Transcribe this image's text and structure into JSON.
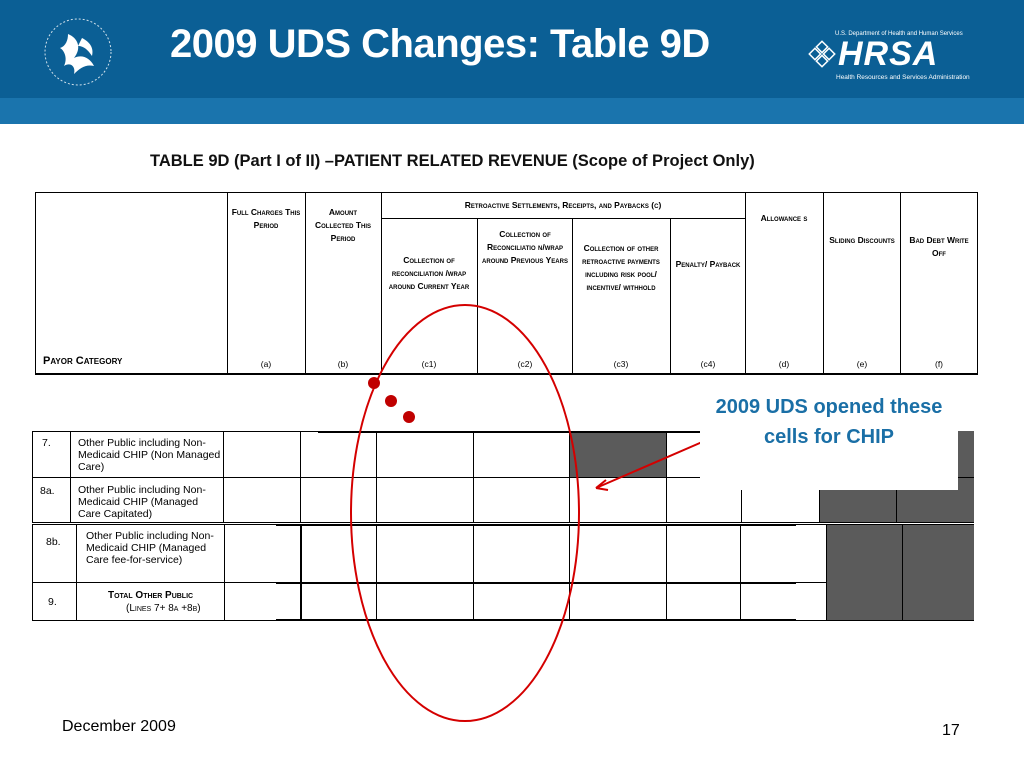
{
  "slide": {
    "title": "2009 UDS Changes: Table 9D",
    "date": "December 2009",
    "page_number": "17"
  },
  "logos": {
    "hhs_icon": "hhs-eagle-icon",
    "hrsa_department": "U.S. Department of Health and Human Services",
    "hrsa_word": "HRSA",
    "hrsa_subtitle": "Health Resources and Services Administration"
  },
  "table": {
    "title": "TABLE 9D (Part I of II) –PATIENT RELATED REVENUE (Scope of Project Only)",
    "group_header": "Retroactive Settlements, Receipts, and Paybacks (c)",
    "columns": [
      {
        "label": "Full Charges This Period",
        "code": "(a)"
      },
      {
        "label": "Amount Collected This Period",
        "code": "(b)"
      },
      {
        "label": "Collection of reconciliation /wrap around Current Year",
        "code": "(c1)"
      },
      {
        "label": "Collection of Reconciliatio n/wrap around Previous Years",
        "code": "(c2)"
      },
      {
        "label": "Collection of other retroactive payments including risk pool/ incentive/ withhold",
        "code": "(c3)"
      },
      {
        "label": "Penalty/ Payback",
        "code": "(c4)"
      },
      {
        "label": "Allowance s",
        "code": "(d)"
      },
      {
        "label": "Sliding Discounts",
        "code": "(e)"
      },
      {
        "label": "Bad Debt Write Off",
        "code": "(f)"
      }
    ],
    "payor_header": "Payor Category",
    "rows": [
      {
        "num": "7.",
        "category": "Other Public including Non-Medicaid CHIP (Non Managed Care)"
      },
      {
        "num": "8a.",
        "category": "Other Public including Non-Medicaid CHIP (Managed Care Capitated)"
      },
      {
        "num": "8b.",
        "category": "Other Public including Non-Medicaid CHIP (Managed Care fee-for-service)"
      },
      {
        "num": "9.",
        "category": "Total Other Public",
        "category_line2": "(Lines 7+ 8a +8b)"
      }
    ]
  },
  "annotation": {
    "callout": "2009 UDS opened these cells for CHIP",
    "color": "#c00000",
    "text_color": "#1a6fa6"
  }
}
